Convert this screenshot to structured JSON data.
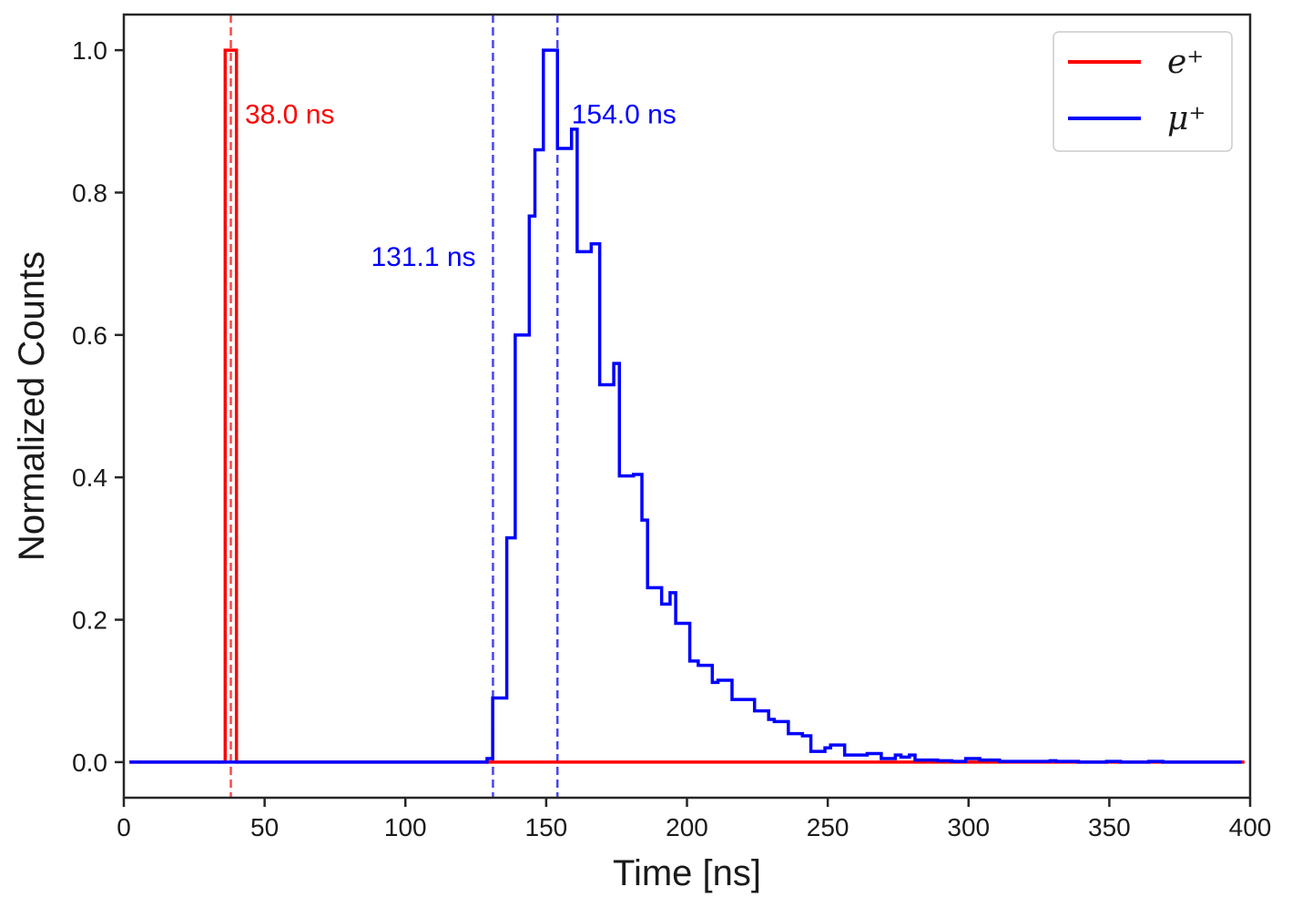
{
  "chart_data": {
    "type": "line",
    "subtype": "step-histogram",
    "title": "",
    "xlabel": "Time [ns]",
    "ylabel": "Normalized Counts",
    "xlim": [
      0,
      400
    ],
    "ylim": [
      -0.05,
      1.05
    ],
    "xticks": [
      0,
      50,
      100,
      150,
      200,
      250,
      300,
      350,
      400
    ],
    "xtick_labels": [
      "0",
      "50",
      "100",
      "150",
      "200",
      "250",
      "300",
      "350",
      "400"
    ],
    "yticks": [
      0.0,
      0.2,
      0.4,
      0.6,
      0.8,
      1.0
    ],
    "ytick_labels": [
      "0.0",
      "0.2",
      "0.4",
      "0.6",
      "0.8",
      "1.0"
    ],
    "grid": false,
    "legend_position": "top-right",
    "series": [
      {
        "name": "e⁺",
        "legend_label": "e⁺",
        "color": "#ff0000",
        "x_start": 2,
        "bin_width": 4,
        "nonzero_bins": [
          {
            "x0": 36,
            "x1": 40,
            "value": 1.0
          }
        ],
        "x_end": 398
      },
      {
        "name": "μ⁺",
        "legend_label": "μ⁺",
        "color": "#0000ff",
        "edges": [
          2,
          126,
          129,
          131,
          134,
          136,
          139,
          141,
          144,
          146,
          149,
          151,
          154,
          156,
          159,
          161,
          164,
          166,
          169,
          171,
          174,
          176,
          179,
          181,
          184,
          186,
          189,
          191,
          194,
          196,
          199,
          201,
          204,
          206,
          209,
          211,
          214,
          216,
          219,
          221,
          224,
          226,
          229,
          231,
          234,
          236,
          239,
          241,
          244,
          246,
          249,
          251,
          254,
          256,
          259,
          261,
          264,
          266,
          269,
          271,
          274,
          276,
          279,
          281,
          284,
          286,
          289,
          291,
          294,
          296,
          299,
          301,
          304,
          306,
          309,
          311,
          314,
          316,
          319,
          321,
          324,
          326,
          329,
          331,
          334,
          336,
          339,
          341,
          344,
          346,
          349,
          351,
          354,
          356,
          359,
          361,
          364,
          366,
          369,
          371,
          374,
          376,
          379,
          381,
          384,
          386,
          389,
          391,
          394,
          397
        ],
        "values": [
          0.0,
          0.0,
          0.005,
          0.09,
          0.09,
          0.315,
          0.6,
          0.6,
          0.767,
          0.86,
          1.0,
          1.0,
          0.862,
          0.862,
          0.889,
          0.717,
          0.717,
          0.728,
          0.53,
          0.53,
          0.56,
          0.402,
          0.402,
          0.404,
          0.34,
          0.245,
          0.245,
          0.222,
          0.238,
          0.195,
          0.195,
          0.142,
          0.136,
          0.136,
          0.112,
          0.115,
          0.115,
          0.088,
          0.088,
          0.088,
          0.072,
          0.072,
          0.06,
          0.057,
          0.057,
          0.04,
          0.04,
          0.037,
          0.015,
          0.015,
          0.02,
          0.024,
          0.024,
          0.01,
          0.01,
          0.01,
          0.012,
          0.012,
          0.005,
          0.005,
          0.01,
          0.007,
          0.01,
          0.003,
          0.003,
          0.003,
          0.002,
          0.002,
          0.001,
          0.001,
          0.005,
          0.005,
          0.003,
          0.003,
          0.003,
          0.001,
          0.001,
          0.001,
          0.001,
          0.001,
          0.001,
          0.001,
          0.002,
          0.001,
          0.001,
          0.001,
          0.0,
          0.0,
          0.0,
          0.0,
          0.001,
          0.001,
          0.0,
          0.0,
          0.0,
          0.0,
          0.001,
          0.001,
          0.0,
          0.0,
          0.0,
          0.0,
          0.0,
          0.0,
          0.0,
          0.0,
          0.0,
          0.0,
          0.0
        ]
      }
    ],
    "vlines": [
      {
        "x": 38.0,
        "color": "#ff3333",
        "style": "dashed"
      },
      {
        "x": 131.1,
        "color": "#3333ee",
        "style": "dashed"
      },
      {
        "x": 154.0,
        "color": "#3333ee",
        "style": "dashed"
      }
    ],
    "annotations": [
      {
        "text": "38.0 ns",
        "x": 43,
        "y": 0.91,
        "color": "#ff0000",
        "anchor": "start"
      },
      {
        "text": "131.1 ns",
        "x": 125,
        "y": 0.71,
        "color": "#0000ff",
        "anchor": "end"
      },
      {
        "text": "154.0 ns",
        "x": 159,
        "y": 0.91,
        "color": "#0000ff",
        "anchor": "start"
      }
    ]
  }
}
